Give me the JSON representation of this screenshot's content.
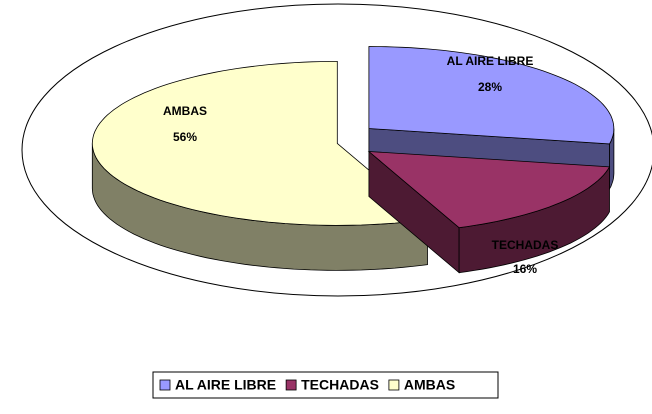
{
  "chart_data": {
    "type": "pie3d",
    "categories": [
      "AL AIRE LIBRE",
      "TECHADAS",
      "AMBAS"
    ],
    "values": [
      28,
      16,
      56
    ],
    "value_labels": [
      "28%",
      "16%",
      "56%"
    ],
    "colors": [
      "#9999ff",
      "#993366",
      "#ffffcc"
    ],
    "legend": "bottom"
  }
}
